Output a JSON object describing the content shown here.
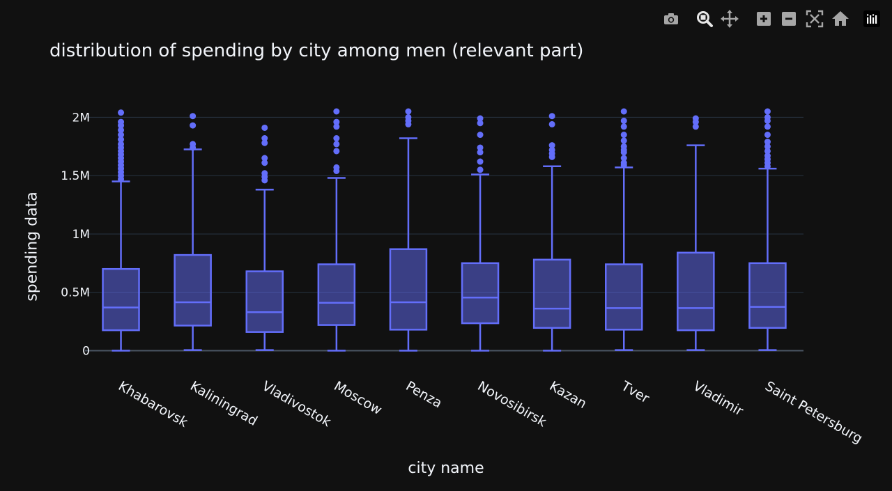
{
  "colors": {
    "background": "#111111",
    "grid": "#283442",
    "zeroline": "#4a5563",
    "box_line": "#636efa",
    "box_fill": "rgba(99,110,250,0.5)",
    "text": "#f2f5fa",
    "icon": "#a6a6a6"
  },
  "modebar": {
    "icons": [
      "camera-icon",
      "zoom-icon",
      "pan-icon",
      "zoom-in-icon",
      "zoom-out-icon",
      "autoscale-icon",
      "home-icon",
      "plotly-logo-icon"
    ]
  },
  "chart_data": {
    "type": "box",
    "title": "distribution of spending by city among men (relevant part)",
    "xlabel": "city name",
    "ylabel": "spending data",
    "ylim": [
      0,
      2050000
    ],
    "y_ticks": [
      {
        "value": 0,
        "label": "0"
      },
      {
        "value": 500000,
        "label": "0.5M"
      },
      {
        "value": 1000000,
        "label": "1M"
      },
      {
        "value": 1500000,
        "label": "1.5M"
      },
      {
        "value": 2000000,
        "label": "2M"
      }
    ],
    "grid": true,
    "categories": [
      "Khabarovsk",
      "Kaliningrad",
      "Vladivostok",
      "Moscow",
      "Penza",
      "Novosibirsk",
      "Kazan",
      "Tver",
      "Vladimir",
      "Saint Petersburg"
    ],
    "boxes": [
      {
        "city": "Khabarovsk",
        "min": 0,
        "q1": 175000,
        "median": 370000,
        "q3": 700000,
        "max": 1450000,
        "outliers": [
          1470000,
          1500000,
          1530000,
          1560000,
          1590000,
          1620000,
          1650000,
          1680000,
          1710000,
          1740000,
          1770000,
          1810000,
          1850000,
          1890000,
          1930000,
          1960000,
          2040000
        ]
      },
      {
        "city": "Kaliningrad",
        "min": 5000,
        "q1": 215000,
        "median": 415000,
        "q3": 820000,
        "max": 1725000,
        "outliers": [
          1740000,
          1770000,
          1930000,
          2010000
        ]
      },
      {
        "city": "Vladivostok",
        "min": 5000,
        "q1": 160000,
        "median": 330000,
        "q3": 680000,
        "max": 1380000,
        "outliers": [
          1460000,
          1490000,
          1520000,
          1610000,
          1650000,
          1780000,
          1820000,
          1910000
        ]
      },
      {
        "city": "Moscow",
        "min": 0,
        "q1": 220000,
        "median": 410000,
        "q3": 740000,
        "max": 1480000,
        "outliers": [
          1540000,
          1570000,
          1710000,
          1770000,
          1820000,
          1920000,
          1960000,
          2050000
        ]
      },
      {
        "city": "Penza",
        "min": 0,
        "q1": 180000,
        "median": 415000,
        "q3": 870000,
        "max": 1820000,
        "outliers": [
          1940000,
          1970000,
          2000000,
          2050000
        ]
      },
      {
        "city": "Novosibirsk",
        "min": 0,
        "q1": 235000,
        "median": 455000,
        "q3": 750000,
        "max": 1510000,
        "outliers": [
          1550000,
          1620000,
          1700000,
          1740000,
          1850000,
          1950000,
          1990000
        ]
      },
      {
        "city": "Kazan",
        "min": 0,
        "q1": 195000,
        "median": 360000,
        "q3": 780000,
        "max": 1580000,
        "outliers": [
          1660000,
          1690000,
          1720000,
          1760000,
          1940000,
          2010000
        ]
      },
      {
        "city": "Tver",
        "min": 5000,
        "q1": 180000,
        "median": 365000,
        "q3": 740000,
        "max": 1570000,
        "outliers": [
          1590000,
          1610000,
          1650000,
          1700000,
          1720000,
          1750000,
          1800000,
          1850000,
          1920000,
          1970000,
          2050000
        ]
      },
      {
        "city": "Vladimir",
        "min": 5000,
        "q1": 175000,
        "median": 365000,
        "q3": 840000,
        "max": 1760000,
        "outliers": [
          1920000,
          1960000,
          1990000
        ]
      },
      {
        "city": "Saint Petersburg",
        "min": 5000,
        "q1": 195000,
        "median": 375000,
        "q3": 750000,
        "max": 1560000,
        "outliers": [
          1580000,
          1610000,
          1640000,
          1670000,
          1710000,
          1750000,
          1790000,
          1850000,
          1920000,
          1970000,
          2000000,
          2050000
        ]
      }
    ]
  }
}
